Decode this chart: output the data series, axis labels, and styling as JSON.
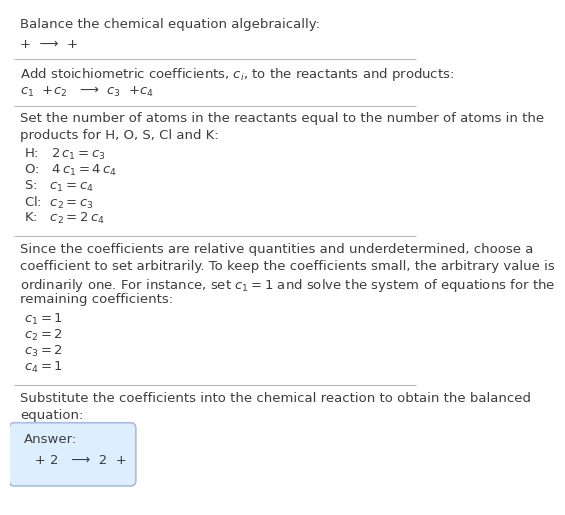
{
  "title": "Balance the chemical equation algebraically:",
  "line1": "+  ⟶  +",
  "section2_label": "Add stoichiometric coefficients, $c_i$, to the reactants and products:",
  "line2": "$c_1$  +$c_2$   ⟶  $c_3$  +$c_4$",
  "section3_label_1": "Set the number of atoms in the reactants equal to the number of atoms in the",
  "section3_label_2": "products for H, O, S, Cl and K:",
  "equations": [
    "H:   $2\\,c_1 = c_3$",
    "O:   $4\\,c_1 = 4\\,c_4$",
    "S:   $c_1 = c_4$",
    "Cl:  $c_2 = c_3$",
    "K:   $c_2 = 2\\,c_4$"
  ],
  "section4_label_1": "Since the coefficients are relative quantities and underdetermined, choose a",
  "section4_label_2": "coefficient to set arbitrarily. To keep the coefficients small, the arbitrary value is",
  "section4_label_3": "ordinarily one. For instance, set $c_1 = 1$ and solve the system of equations for the",
  "section4_label_4": "remaining coefficients:",
  "solution": [
    "$c_1 = 1$",
    "$c_2 = 2$",
    "$c_3 = 2$",
    "$c_4 = 1$"
  ],
  "section5_label_1": "Substitute the coefficients into the chemical reaction to obtain the balanced",
  "section5_label_2": "equation:",
  "answer_label": "Answer:",
  "answer_eq": "   + 2   ⟶  2  +",
  "bg_color": "#ffffff",
  "text_color": "#3d3d3d",
  "answer_box_facecolor": "#ddeeff",
  "answer_box_edgecolor": "#aabbdd",
  "separator_color": "#bbbbbb",
  "fontsize": 9.5
}
